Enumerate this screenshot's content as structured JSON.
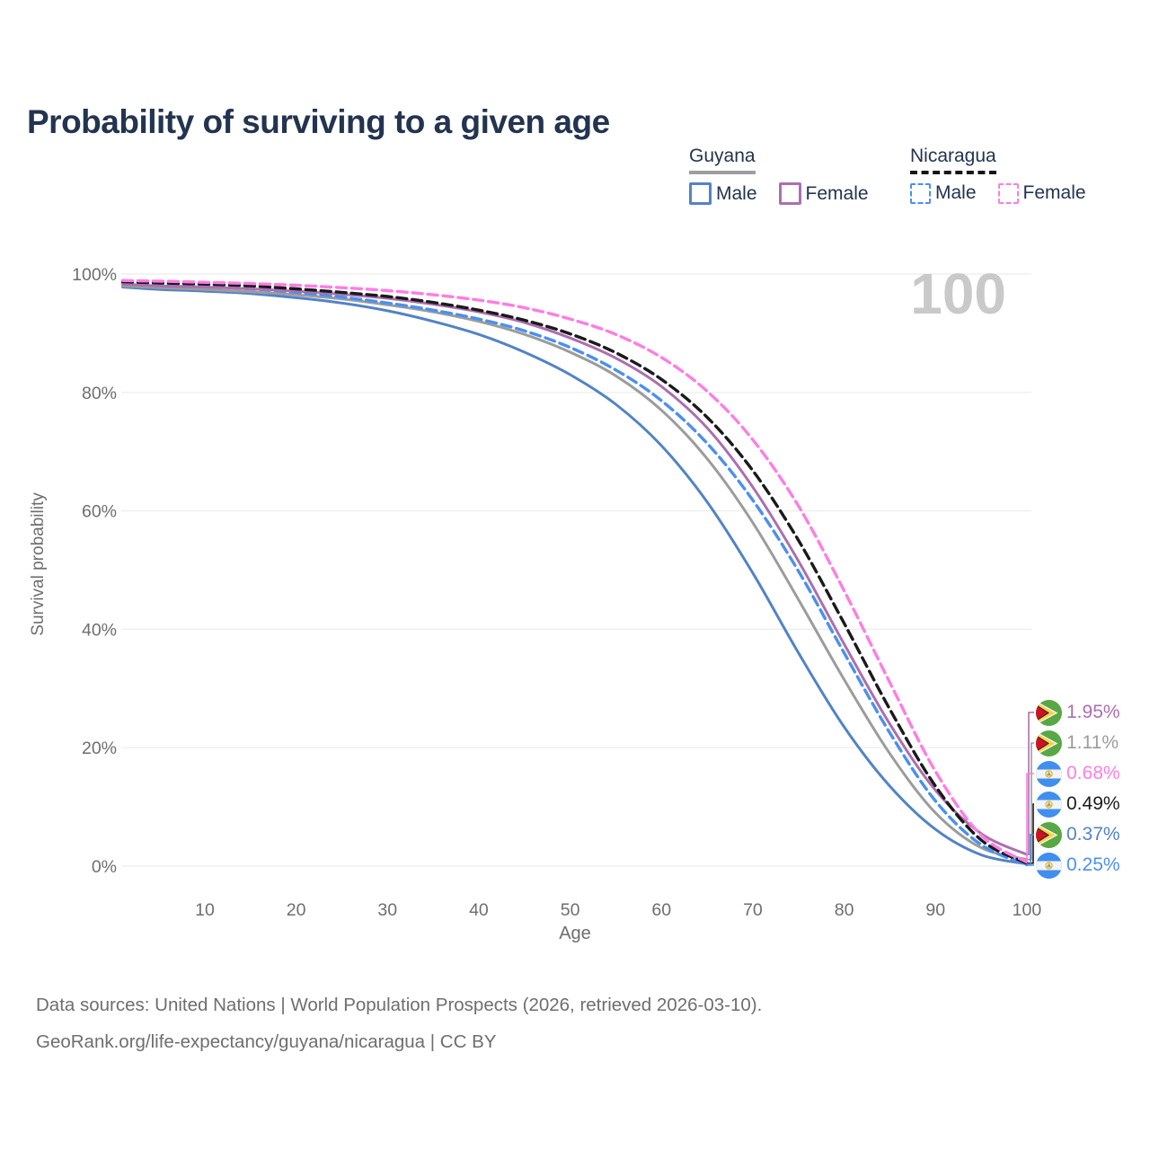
{
  "header": {
    "title": "Probability of surviving to a given age"
  },
  "legend": {
    "groups": [
      {
        "country": "Guyana",
        "line_style": "solid",
        "underline_color": "#9E9E9E",
        "items": [
          {
            "label": "Male",
            "color": "#5283C6",
            "dashed": false
          },
          {
            "label": "Female",
            "color": "#AC6FAF",
            "dashed": false
          }
        ]
      },
      {
        "country": "Nicaragua",
        "line_style": "dashed",
        "underline_color": "#161616",
        "items": [
          {
            "label": "Male",
            "color": "#4A90F2",
            "dashed": true
          },
          {
            "label": "Female",
            "color": "#FF7DE3",
            "dashed": true
          }
        ]
      }
    ]
  },
  "watermark": {
    "value": "100"
  },
  "chart_data": {
    "type": "line",
    "title": "Probability of surviving to a given age",
    "xlabel": "Age",
    "ylabel": "Survival probability",
    "xlim": [
      0,
      100
    ],
    "ylim": [
      0,
      100
    ],
    "grid": "horizontal-only",
    "x_ticks": [
      10,
      20,
      30,
      40,
      50,
      60,
      70,
      80,
      90,
      100
    ],
    "y_ticks": [
      0,
      20,
      40,
      60,
      80,
      100
    ],
    "y_tick_suffix": "%",
    "x": [
      1,
      5,
      10,
      15,
      20,
      25,
      30,
      35,
      40,
      45,
      50,
      55,
      60,
      65,
      70,
      75,
      80,
      85,
      90,
      95,
      100
    ],
    "series": [
      {
        "id": "guyana_male",
        "name": "Guyana Male",
        "color": "#5283C6",
        "dashed": false,
        "end_label": "0.37%",
        "end_value": 0.37,
        "values": [
          97.8,
          97.4,
          97.1,
          96.7,
          96.0,
          95.1,
          93.8,
          92.0,
          89.8,
          86.8,
          83.0,
          78.0,
          71.0,
          61.5,
          49.5,
          36.0,
          23.5,
          13.5,
          6.2,
          1.9,
          0.37
        ]
      },
      {
        "id": "guyana_all",
        "name": "Guyana Both sexes",
        "color": "#9C9C9C",
        "dashed": false,
        "end_label": "1.11%",
        "end_value": 1.11,
        "values": [
          98.0,
          97.7,
          97.4,
          97.0,
          96.5,
          95.8,
          94.8,
          93.6,
          92.0,
          89.8,
          86.8,
          82.8,
          77.0,
          68.8,
          58.0,
          45.0,
          31.5,
          19.0,
          9.0,
          3.1,
          1.11
        ]
      },
      {
        "id": "nicaragua_male",
        "name": "Nicaragua Male",
        "color": "#4A90F2",
        "dashed": true,
        "end_label": "0.25%",
        "end_value": 0.25,
        "values": [
          98.5,
          98.2,
          97.9,
          97.5,
          96.9,
          96.1,
          95.1,
          93.9,
          92.4,
          90.4,
          87.6,
          83.8,
          78.6,
          71.4,
          61.8,
          49.8,
          36.0,
          22.5,
          11.0,
          3.6,
          0.25
        ]
      },
      {
        "id": "guyana_female",
        "name": "Guyana Female",
        "color": "#AC6FAF",
        "dashed": false,
        "end_label": "1.95%",
        "end_value": 1.95,
        "values": [
          98.3,
          98.0,
          97.8,
          97.5,
          97.1,
          96.6,
          95.9,
          94.9,
          93.6,
          91.8,
          89.2,
          85.8,
          81.0,
          74.0,
          64.0,
          51.5,
          37.5,
          24.0,
          12.8,
          5.5,
          1.95
        ]
      },
      {
        "id": "nicaragua_all",
        "name": "Nicaragua Both sexes",
        "color": "#1A1A1A",
        "dashed": true,
        "end_label": "0.49%",
        "end_value": 0.49,
        "values": [
          98.7,
          98.5,
          98.3,
          98.0,
          97.5,
          96.9,
          96.2,
          95.2,
          93.9,
          92.2,
          89.9,
          86.7,
          82.2,
          75.8,
          66.8,
          55.0,
          41.0,
          26.5,
          13.5,
          4.4,
          0.49
        ]
      },
      {
        "id": "nicaragua_female",
        "name": "Nicaragua Female",
        "color": "#FF7DE3",
        "dashed": true,
        "end_label": "0.68%",
        "end_value": 0.68,
        "values": [
          98.9,
          98.8,
          98.6,
          98.4,
          98.1,
          97.7,
          97.2,
          96.5,
          95.6,
          94.3,
          92.4,
          89.8,
          85.9,
          80.2,
          72.0,
          60.8,
          46.5,
          31.0,
          16.0,
          5.2,
          0.68
        ]
      }
    ]
  },
  "endpoint_labels": [
    {
      "series": "guyana_female",
      "flag": "guyana",
      "text": "1.95%",
      "color": "#AC6FAF"
    },
    {
      "series": "guyana_all",
      "flag": "guyana",
      "text": "1.11%",
      "color": "#9C9C9C"
    },
    {
      "series": "nicaragua_female",
      "flag": "nicaragua",
      "text": "0.68%",
      "color": "#FF7DE3"
    },
    {
      "series": "nicaragua_all",
      "flag": "nicaragua",
      "text": "0.49%",
      "color": "#1A1A1A"
    },
    {
      "series": "guyana_male",
      "flag": "guyana",
      "text": "0.37%",
      "color": "#5283C6"
    },
    {
      "series": "nicaragua_male",
      "flag": "nicaragua",
      "text": "0.25%",
      "color": "#4A90F2"
    }
  ],
  "footer": {
    "line1": "Data sources: United Nations | World Population Prospects (2026, retrieved 2026-03-10).",
    "line2": "GeoRank.org/life-expectancy/guyana/nicaragua | CC BY"
  }
}
